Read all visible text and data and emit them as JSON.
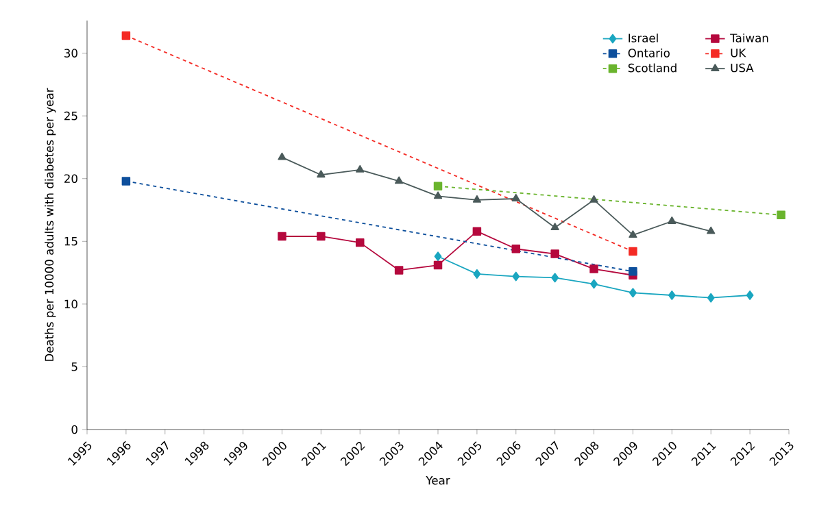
{
  "chart_data": {
    "type": "line",
    "xlabel": "Year",
    "ylabel": "Deaths per 10000 adults with diabetes per year",
    "xlim": [
      1995,
      2013
    ],
    "ylim": [
      0,
      32.6
    ],
    "xticks": [
      1995,
      1996,
      1997,
      1998,
      1999,
      2000,
      2001,
      2002,
      2003,
      2004,
      2005,
      2006,
      2007,
      2008,
      2009,
      2010,
      2011,
      2012,
      2013
    ],
    "yticks": [
      0,
      5,
      10,
      15,
      20,
      25,
      30
    ],
    "grid": false,
    "legend": "top right",
    "series": [
      {
        "name": "Israel",
        "color": "#1aa6c0",
        "marker": "diamond",
        "line_style": "solid",
        "x": [
          2004,
          2005,
          2006,
          2007,
          2008,
          2009,
          2010,
          2011,
          2012
        ],
        "values": [
          13.8,
          12.4,
          12.2,
          12.1,
          11.6,
          10.9,
          10.7,
          10.5,
          10.7
        ]
      },
      {
        "name": "Taiwan",
        "color": "#b5083d",
        "marker": "square",
        "line_style": "solid",
        "x": [
          2000,
          2001,
          2002,
          2003,
          2004,
          2005,
          2006,
          2007,
          2008,
          2009
        ],
        "values": [
          15.4,
          15.4,
          14.9,
          12.7,
          13.1,
          15.8,
          14.4,
          14.0,
          12.8,
          12.3
        ]
      },
      {
        "name": "Ontario",
        "color": "#0d4f9c",
        "marker": "square",
        "line_style": "dashed",
        "x": [
          1996,
          2009
        ],
        "values": [
          19.8,
          12.6
        ]
      },
      {
        "name": "UK",
        "color": "#f42a24",
        "marker": "square",
        "line_style": "dashed",
        "x": [
          1996,
          2009
        ],
        "values": [
          31.4,
          14.2
        ]
      },
      {
        "name": "Scotland",
        "color": "#6ab42d",
        "marker": "square",
        "line_style": "dashed",
        "x": [
          2004,
          2012.8
        ],
        "values": [
          19.4,
          17.1
        ]
      },
      {
        "name": "USA",
        "color": "#4a5a5a",
        "marker": "triangle",
        "line_style": "solid",
        "x": [
          2000,
          2001,
          2002,
          2003,
          2004,
          2005,
          2006,
          2007,
          2008,
          2009,
          2010,
          2011
        ],
        "values": [
          21.7,
          20.3,
          20.7,
          19.8,
          18.6,
          18.3,
          18.4,
          16.1,
          18.3,
          15.5,
          16.6,
          15.8
        ]
      }
    ]
  }
}
